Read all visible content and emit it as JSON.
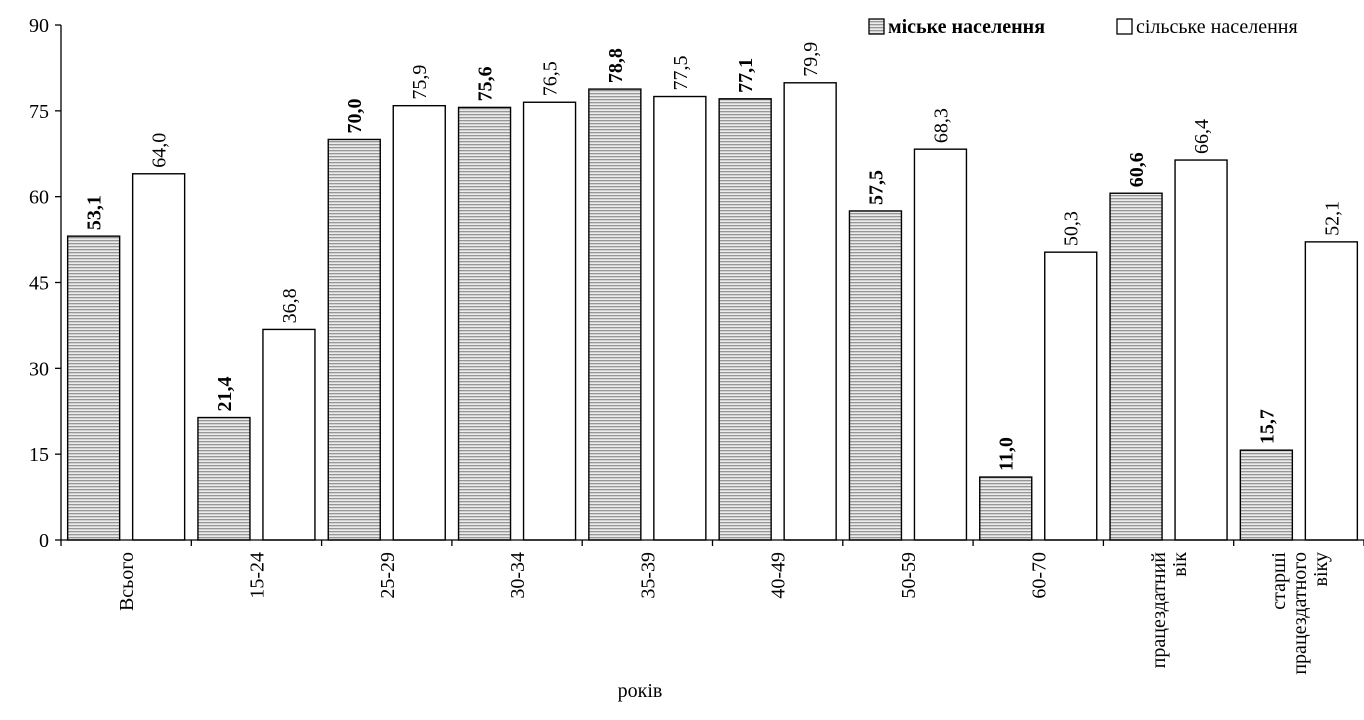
{
  "chart_data": {
    "type": "bar",
    "xlabel": "років",
    "ylabel": "",
    "ylim": [
      0,
      90
    ],
    "yticks": [
      0,
      15,
      30,
      45,
      60,
      75,
      90
    ],
    "grid": false,
    "legend_position": "top-right",
    "categories": [
      [
        "Всього"
      ],
      [
        "15-24"
      ],
      [
        "25-29"
      ],
      [
        "30-34"
      ],
      [
        "35-39"
      ],
      [
        "40-49"
      ],
      [
        "50-59"
      ],
      [
        "60-70"
      ],
      [
        "працездатний",
        "вік"
      ],
      [
        "старші",
        "працездатного",
        "віку"
      ]
    ],
    "series": [
      {
        "name": "міське населення",
        "values": [
          53.1,
          21.4,
          70.0,
          75.6,
          78.8,
          77.1,
          57.5,
          11.0,
          60.6,
          15.7
        ],
        "labels": [
          "53,1",
          "21,4",
          "70,0",
          "75,6",
          "78,8",
          "77,1",
          "57,5",
          "11,0",
          "60,6",
          "15,7"
        ],
        "fill": "#d9d9d9",
        "pattern": "horizontal-lines",
        "label_bold": true
      },
      {
        "name": "сільське населення",
        "values": [
          64.0,
          36.8,
          75.9,
          76.5,
          77.5,
          79.9,
          68.3,
          50.3,
          66.4,
          52.1
        ],
        "labels": [
          "64,0",
          "36,8",
          "75,9",
          "76,5",
          "77,5",
          "79,9",
          "68,3",
          "50,3",
          "66,4",
          "52,1"
        ],
        "fill": "#ffffff",
        "pattern": "none",
        "label_bold": false
      }
    ]
  }
}
